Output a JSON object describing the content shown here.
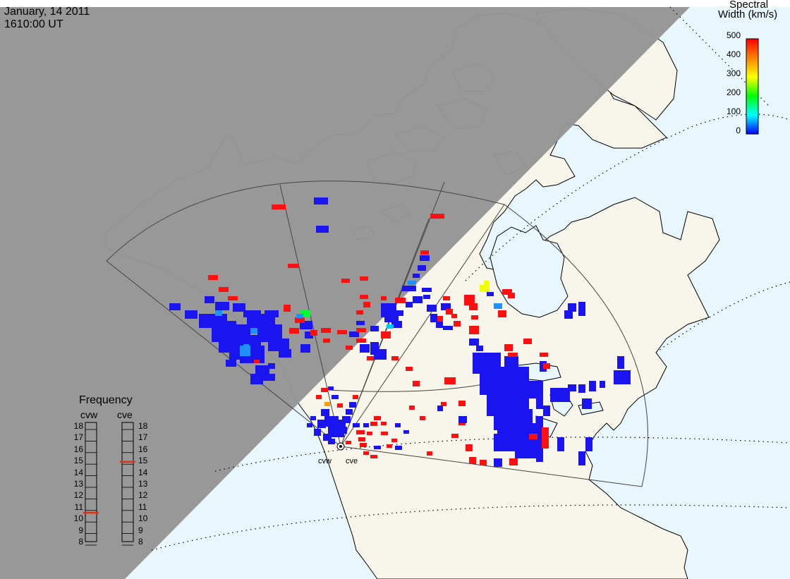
{
  "header": {
    "date": "January, 14 2011",
    "time": "1610:00 UT"
  },
  "colorbar": {
    "title_line1": "Spectral",
    "title_line2": "Width (km/s)",
    "ticks": [
      "500",
      "400",
      "300",
      "200",
      "100",
      "0"
    ],
    "range": [
      0,
      500
    ],
    "gradient_colors": [
      "#ff0000",
      "#ff8000",
      "#ffff00",
      "#00ff00",
      "#00ffff",
      "#0000ff"
    ]
  },
  "frequency_panel": {
    "title": "Frequency",
    "radars": [
      {
        "label": "cvw",
        "frequency_mhz": 10.8
      },
      {
        "label": "cve",
        "frequency_mhz": 15.2
      }
    ],
    "scale": [
      "18",
      "17",
      "16",
      "15",
      "14",
      "13",
      "12",
      "11",
      "10",
      "9",
      "8"
    ]
  },
  "radar_sites": [
    {
      "label": "cvw"
    },
    {
      "label": "cve"
    }
  ],
  "colors": {
    "night": "#959595",
    "ocean": "#e8f6fd",
    "land": "#f8f6ea",
    "coast": "#000000",
    "scatter_low": "#1a14f0",
    "scatter_high": "#ff1010",
    "frequency_marker": "#e03010"
  }
}
